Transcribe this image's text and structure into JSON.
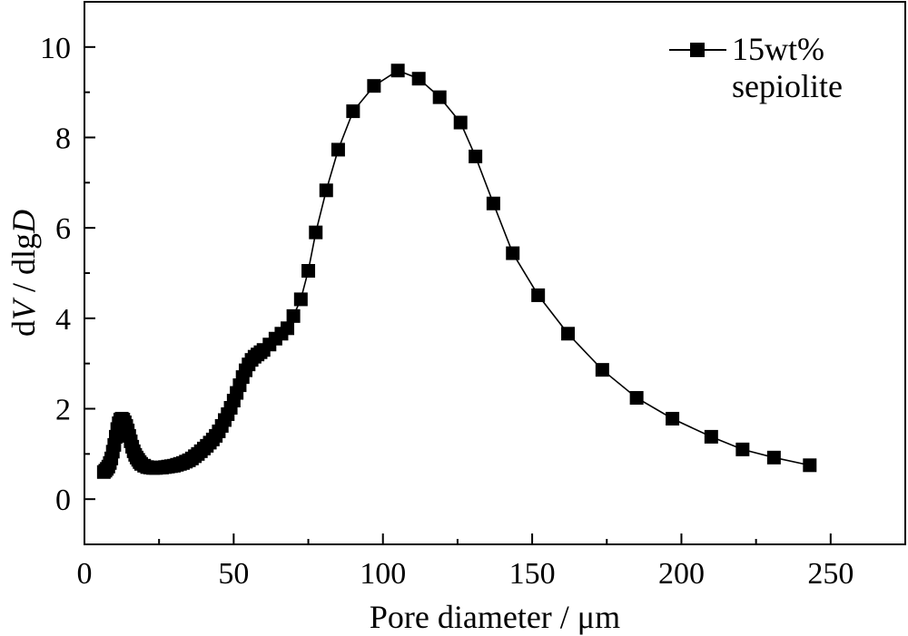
{
  "chart_data": {
    "type": "line",
    "xlabel": "Pore diameter / μm",
    "ylabel": {
      "parts": [
        {
          "text": "d"
        },
        {
          "text": "V",
          "italic": true
        },
        {
          "text": " / dlg"
        },
        {
          "text": "D",
          "italic": true
        }
      ]
    },
    "xlim": [
      0,
      275
    ],
    "ylim": [
      -1,
      11
    ],
    "xticks": [
      0,
      50,
      100,
      150,
      200,
      250
    ],
    "yticks": [
      0,
      2,
      4,
      6,
      8,
      10
    ],
    "grid": false,
    "legend_position": "top-right",
    "colors": {
      "series": "#000000",
      "axis": "#000000",
      "background": "#ffffff"
    },
    "series": [
      {
        "name": "15wt% sepiolite",
        "marker": "square",
        "x": [
          6.5,
          7,
          7.5,
          8,
          8.5,
          9,
          9.5,
          10,
          10.5,
          11,
          11.5,
          12,
          12.5,
          13,
          13.5,
          14,
          14.5,
          15,
          15.5,
          16,
          16.5,
          17,
          17.5,
          18,
          18.5,
          19,
          20,
          21,
          22,
          23,
          24,
          25,
          26,
          27,
          28,
          29,
          30,
          31,
          32,
          33,
          34,
          35,
          36,
          37,
          38,
          39,
          40,
          41,
          42,
          43,
          44,
          45,
          46,
          47,
          48,
          49,
          50,
          51,
          52,
          53,
          54,
          55,
          56,
          57,
          58,
          59,
          60,
          62,
          64,
          66,
          68,
          70,
          72.5,
          75,
          77.5,
          81,
          85,
          90,
          97,
          105,
          112,
          119,
          126,
          131,
          137,
          143.5,
          152,
          162,
          173.5,
          185,
          197,
          210,
          220.5,
          231,
          243
        ],
        "y": [
          0.6,
          0.63,
          0.67,
          0.72,
          0.8,
          0.9,
          1.05,
          1.2,
          1.38,
          1.55,
          1.68,
          1.76,
          1.78,
          1.76,
          1.7,
          1.62,
          1.52,
          1.4,
          1.28,
          1.16,
          1.06,
          0.98,
          0.92,
          0.87,
          0.82,
          0.78,
          0.74,
          0.71,
          0.7,
          0.69,
          0.69,
          0.7,
          0.7,
          0.71,
          0.72,
          0.73,
          0.74,
          0.76,
          0.78,
          0.8,
          0.83,
          0.86,
          0.9,
          0.95,
          1.0,
          1.06,
          1.12,
          1.18,
          1.25,
          1.32,
          1.4,
          1.5,
          1.62,
          1.75,
          1.88,
          2.02,
          2.18,
          2.35,
          2.52,
          2.7,
          2.85,
          2.98,
          3.08,
          3.15,
          3.2,
          3.25,
          3.3,
          3.42,
          3.55,
          3.66,
          3.78,
          4.05,
          4.42,
          5.05,
          5.9,
          6.83,
          7.73,
          8.58,
          9.14,
          9.48,
          9.3,
          8.89,
          8.33,
          7.58,
          6.54,
          5.44,
          4.51,
          3.66,
          2.86,
          2.24,
          1.78,
          1.38,
          1.1,
          0.92,
          0.75
        ]
      }
    ]
  }
}
